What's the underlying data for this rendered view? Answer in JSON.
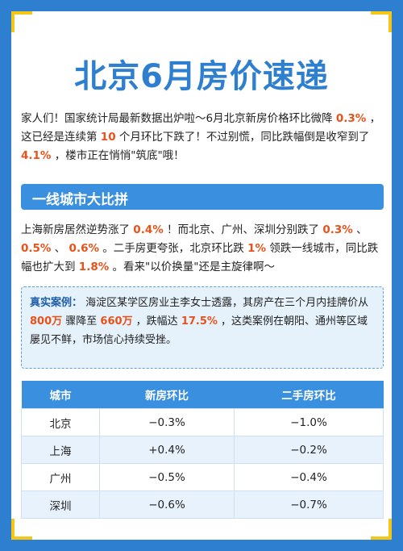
{
  "title": "北京6月房价速递",
  "intro": {
    "t1": "家人们！国家统计局最新数据出炉啦～6月北京新房价格环比微降 ",
    "v1": "0.3%",
    "t2": " ，这已经是连续第 ",
    "v2": "10",
    "t3": " 个月环比下跌了！不过别慌，同比跌幅倒是收窄到了 ",
    "v3": "4.1%",
    "t4": " ，楼市正在悄悄\"筑底\"哦！"
  },
  "section_title": "一线城市大比拼",
  "section": {
    "t1": "上海新房居然逆势涨了 ",
    "v1": "0.4%",
    "t2": " ！而北京、广州、深圳分别跌了 ",
    "v2": "0.3%",
    "t3": " 、 ",
    "v3": "0.5%",
    "t4": " 、 ",
    "v4": "0.6%",
    "t5": " 。二手房更夸张，北京环比跌 ",
    "v5": "1%",
    "t6": " 领跌一线城市，同比跌幅也扩大到 ",
    "v6": "1.8%",
    "t7": " 。看来\"以价换量\"还是主旋律啊～"
  },
  "case": {
    "label": "真实案例：",
    "t1": " 海淀区某学区房业主李女士透露，其房产在三个月内挂牌价从 ",
    "v1": "800万",
    "t2": " 骤降至 ",
    "v2": "660万",
    "t3": " ，跌幅达 ",
    "v3": "17.5%",
    "t4": " ，这类案例在朝阳、通州等区域屡见不鲜，市场信心持续受挫。"
  },
  "table": {
    "headers": [
      "城市",
      "新房环比",
      "二手房环比"
    ],
    "rows": [
      {
        "city": "北京",
        "new": "−0.3%",
        "second": "−1.0%"
      },
      {
        "city": "上海",
        "new": "+0.4%",
        "second": "−0.2%"
      },
      {
        "city": "广州",
        "new": "−0.5%",
        "second": "−0.4%"
      },
      {
        "city": "深圳",
        "new": "−0.6%",
        "second": "−0.7%"
      }
    ]
  },
  "colors": {
    "background": "#2f7fd0",
    "accent": "#3a8fde",
    "highlight": "#e8521a",
    "corner": "#f5c518"
  }
}
